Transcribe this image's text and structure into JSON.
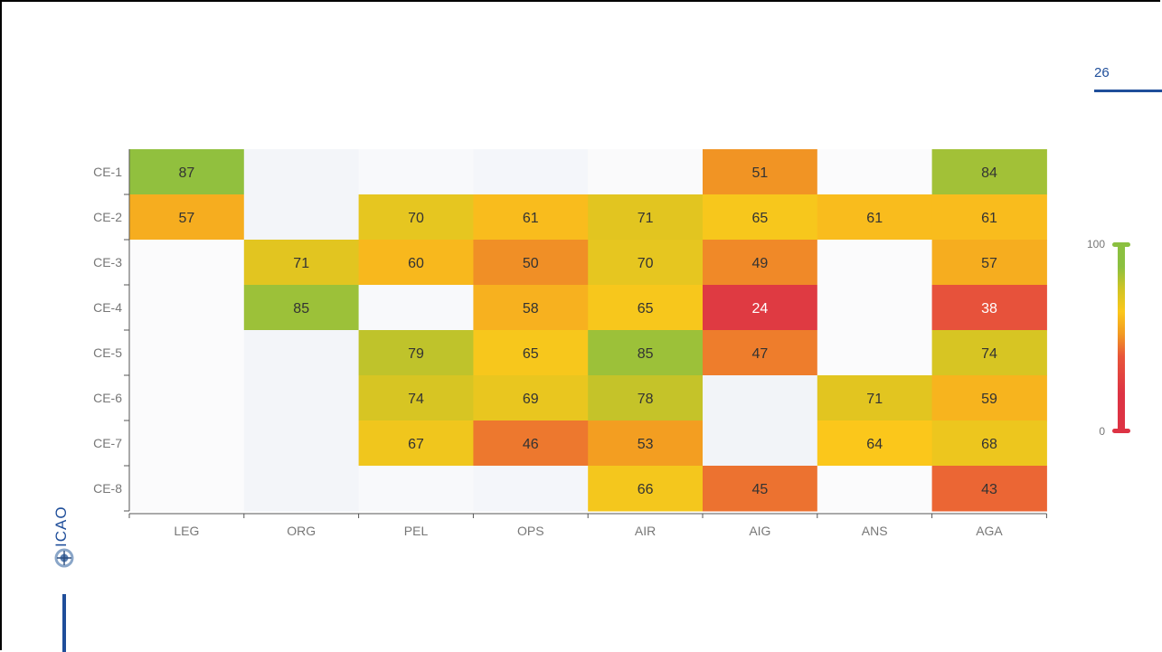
{
  "slide": {
    "page_number": "26",
    "logo_text": "ICAO"
  },
  "colors": {
    "scale_low": "#dd3344",
    "scale_mid": "#fbc71b",
    "scale_high": "#8bc040",
    "empty_cell": "#f2f4f8",
    "tick_label": "#777777",
    "value_label": "#333333",
    "accent": "#1f4e9a"
  },
  "chart_data": {
    "type": "heatmap",
    "title": "",
    "xlabel": "",
    "ylabel": "",
    "x_categories": [
      "LEG",
      "ORG",
      "PEL",
      "OPS",
      "AIR",
      "AIG",
      "ANS",
      "AGA"
    ],
    "y_categories": [
      "CE-1",
      "CE-2",
      "CE-3",
      "CE-4",
      "CE-5",
      "CE-6",
      "CE-7",
      "CE-8"
    ],
    "values": [
      [
        87,
        null,
        null,
        null,
        null,
        51,
        null,
        84
      ],
      [
        57,
        null,
        70,
        61,
        71,
        65,
        61,
        61
      ],
      [
        null,
        71,
        60,
        50,
        70,
        49,
        null,
        57
      ],
      [
        null,
        85,
        null,
        58,
        65,
        24,
        null,
        38
      ],
      [
        null,
        null,
        79,
        65,
        85,
        47,
        null,
        74
      ],
      [
        null,
        null,
        74,
        69,
        78,
        null,
        71,
        59
      ],
      [
        null,
        null,
        67,
        46,
        53,
        null,
        64,
        68
      ],
      [
        null,
        null,
        null,
        null,
        66,
        45,
        null,
        43
      ]
    ],
    "color_scale": {
      "min": 0,
      "max": 100,
      "min_label": "0",
      "max_label": "100"
    },
    "legend": "right",
    "grid": false
  }
}
